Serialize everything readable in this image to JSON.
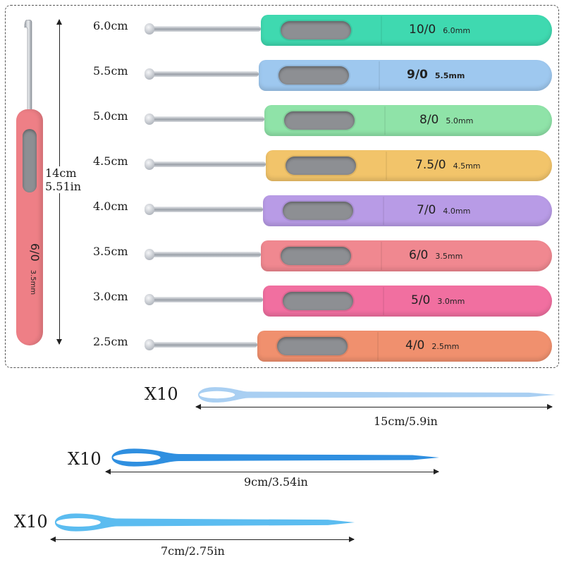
{
  "hero_hook": {
    "size": "6/0",
    "mm": "3.5mm",
    "length_cm": "14cm",
    "length_in": "5.51in",
    "handle_color": "#ee7f86"
  },
  "hooks": [
    {
      "label": "6.0cm",
      "size": "10/0",
      "mm": "6.0mm",
      "color": "#3fd9b0"
    },
    {
      "label": "5.5cm",
      "size": "9/0",
      "mm": "5.5mm",
      "color": "#9ec8ef"
    },
    {
      "label": "5.0cm",
      "size": "8/0",
      "mm": "5.0mm",
      "color": "#8fe3a8"
    },
    {
      "label": "4.5cm",
      "size": "7.5/0",
      "mm": "4.5mm",
      "color": "#f2c46a"
    },
    {
      "label": "4.0cm",
      "size": "7/0",
      "mm": "4.0mm",
      "color": "#b89be6"
    },
    {
      "label": "3.5cm",
      "size": "6/0",
      "mm": "3.5mm",
      "color": "#f08890"
    },
    {
      "label": "3.0cm",
      "size": "5/0",
      "mm": "3.0mm",
      "color": "#f16fa0"
    },
    {
      "label": "2.5cm",
      "size": "4/0",
      "mm": "2.5mm",
      "color": "#f0906e"
    }
  ],
  "needles": [
    {
      "quantity": "X10",
      "length": "15cm/5.9in",
      "color": "#a9cff2"
    },
    {
      "quantity": "X10",
      "length": "9cm/3.54in",
      "color": "#2f8fe0"
    },
    {
      "quantity": "X10",
      "length": "7cm/2.75in",
      "color": "#5bbcf0"
    }
  ]
}
